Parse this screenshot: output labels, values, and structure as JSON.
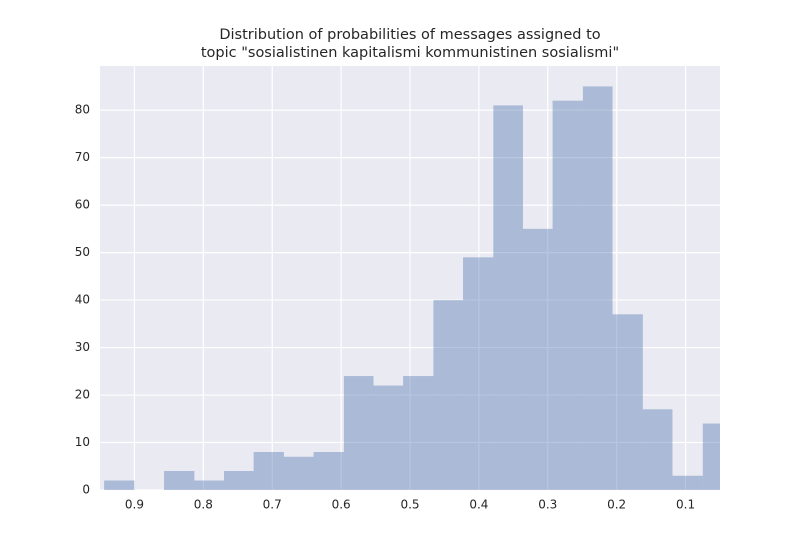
{
  "chart_data": {
    "type": "histogram",
    "title": [
      "Distribution of probabilities of messages assigned to",
      "topic \"sosialistinen kapitalismi kommunistinen sosialismi\""
    ],
    "bins": [
      0.944,
      0.9,
      0.857,
      0.813,
      0.77,
      0.727,
      0.683,
      0.64,
      0.596,
      0.553,
      0.51,
      0.466,
      0.423,
      0.379,
      0.336,
      0.293,
      0.249,
      0.206,
      0.162,
      0.119,
      0.075,
      0.032
    ],
    "values": [
      2,
      0,
      4,
      2,
      4,
      8,
      7,
      8,
      24,
      22,
      24,
      40,
      49,
      81,
      55,
      82,
      85,
      37,
      17,
      3,
      14
    ],
    "color": "#4c72b0",
    "xlim": [
      0.95,
      0.05
    ],
    "xticks": [
      0.9,
      0.8,
      0.7,
      0.6,
      0.5,
      0.4,
      0.3,
      0.2,
      0.1
    ],
    "ylim": [
      0,
      89.3
    ],
    "yticks": [
      0,
      10,
      20,
      30,
      40,
      50,
      60,
      70,
      80
    ],
    "grid": true
  }
}
